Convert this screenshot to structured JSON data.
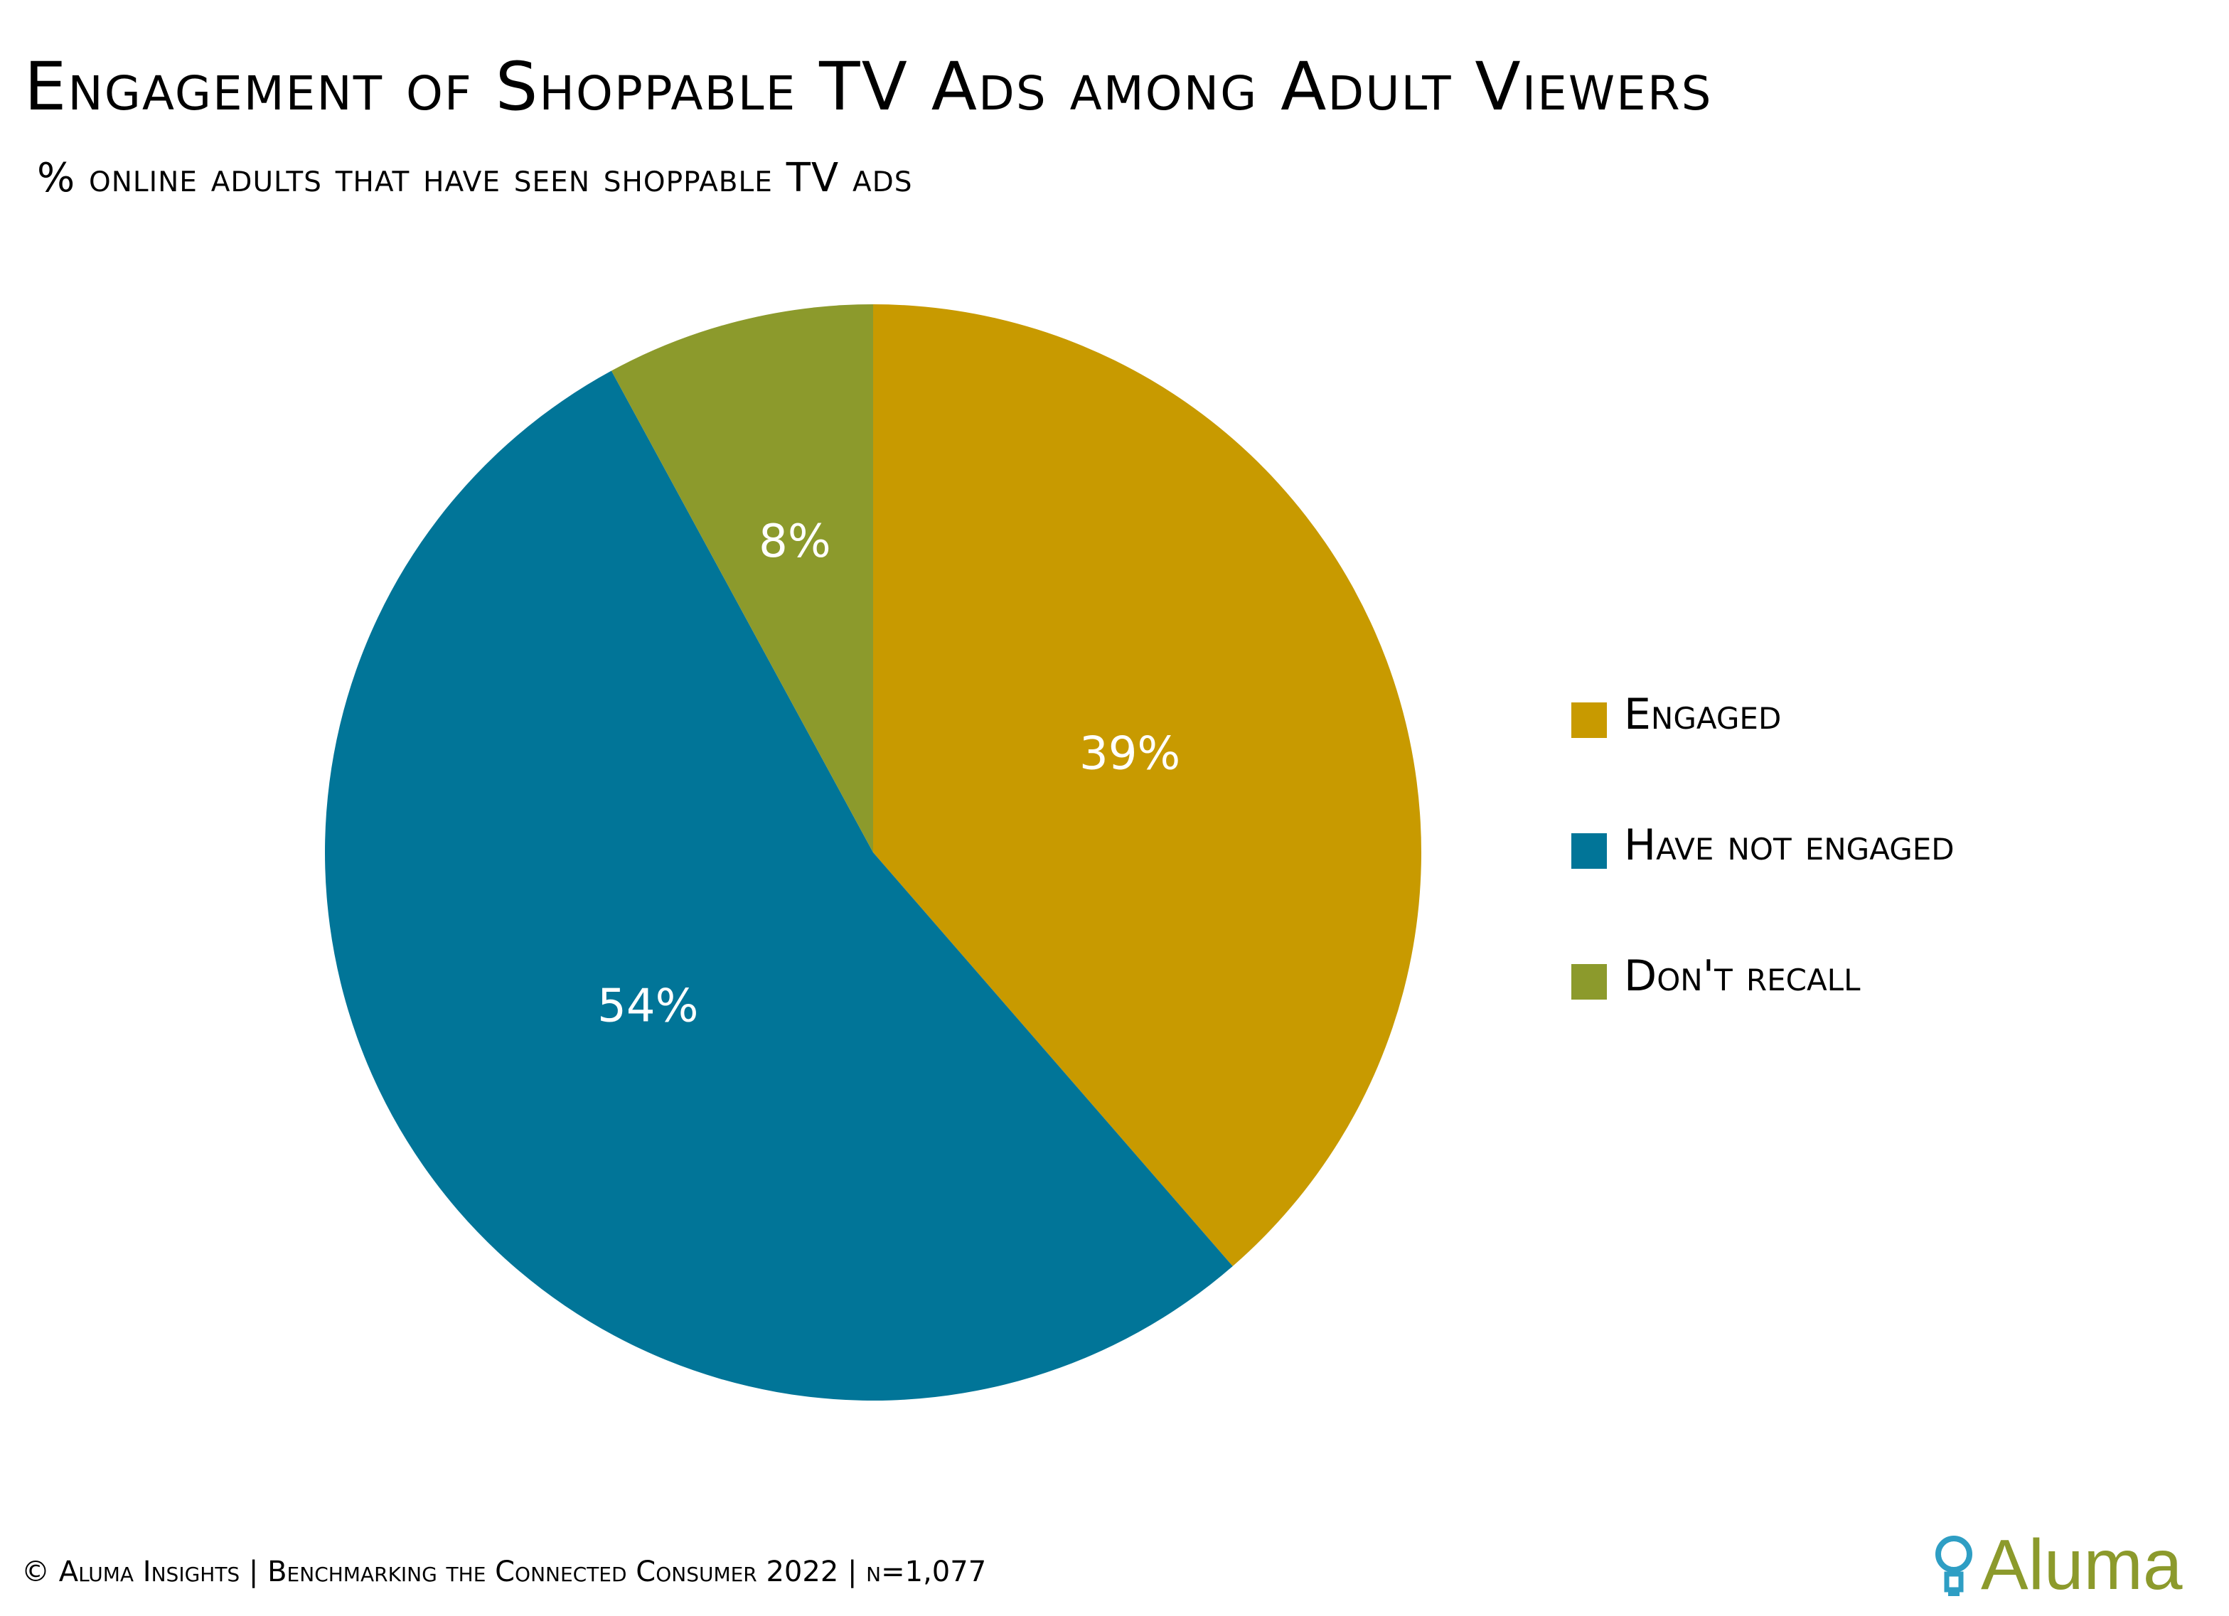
{
  "header": {
    "title": "Engagement of Shoppable TV Ads among Adult Viewers",
    "subtitle": "% online adults that have seen shoppable TV ads"
  },
  "chart_data": {
    "type": "pie",
    "title": "Engagement of Shoppable TV Ads among Adult Viewers",
    "subtitle": "% online adults that have seen shoppable TV ads",
    "categories": [
      "Engaged",
      "Have not engaged",
      "Don't recall"
    ],
    "values": [
      39,
      54,
      8
    ],
    "labels": [
      "39%",
      "54%",
      "8%"
    ],
    "colors": [
      "#c89a00",
      "#017598",
      "#8c9a2c"
    ],
    "start": "12 o'clock",
    "direction": "clockwise",
    "legend": "right"
  },
  "legend": {
    "items": [
      {
        "label": "Engaged",
        "color": "#c89a00"
      },
      {
        "label": "Have not engaged",
        "color": "#017598"
      },
      {
        "label": "Don't recall",
        "color": "#8c9a2c"
      }
    ]
  },
  "footer": {
    "text": "© Aluma Insights | Benchmarking the Connected Consumer 2022 | n=1,077"
  },
  "logo": {
    "text": "Aluma",
    "icon": "lightbulb-icon",
    "color": "#8c9a2c",
    "icon_color": "#2e9ec4"
  }
}
